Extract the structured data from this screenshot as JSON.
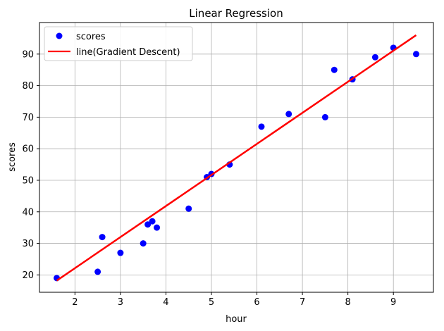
{
  "chart_data": {
    "type": "scatter",
    "title": "Linear Regression",
    "xlabel": "hour",
    "ylabel": "scores",
    "xlim": [
      1.22,
      9.88
    ],
    "ylim": [
      14.5,
      100
    ],
    "xticks": [
      2,
      3,
      4,
      5,
      6,
      7,
      8,
      9
    ],
    "yticks": [
      20,
      30,
      40,
      50,
      60,
      70,
      80,
      90
    ],
    "grid": true,
    "legend_position": "top-left",
    "series": [
      {
        "name": "scores",
        "kind": "scatter",
        "color": "#0000ff",
        "points": [
          [
            1.6,
            19
          ],
          [
            2.5,
            21
          ],
          [
            2.6,
            32
          ],
          [
            3.0,
            27
          ],
          [
            3.5,
            30
          ],
          [
            3.6,
            36
          ],
          [
            3.7,
            37
          ],
          [
            3.8,
            35
          ],
          [
            4.5,
            41
          ],
          [
            4.9,
            51
          ],
          [
            5.0,
            52
          ],
          [
            5.4,
            55
          ],
          [
            6.1,
            67
          ],
          [
            6.7,
            71
          ],
          [
            7.5,
            70
          ],
          [
            7.7,
            85
          ],
          [
            8.1,
            82
          ],
          [
            8.6,
            89
          ],
          [
            9.0,
            92
          ],
          [
            9.5,
            90
          ]
        ]
      },
      {
        "name": "line(Gradient Descent)",
        "kind": "line",
        "color": "#ff0000",
        "points": [
          [
            1.6,
            18.2
          ],
          [
            9.5,
            96.0
          ]
        ]
      }
    ]
  }
}
